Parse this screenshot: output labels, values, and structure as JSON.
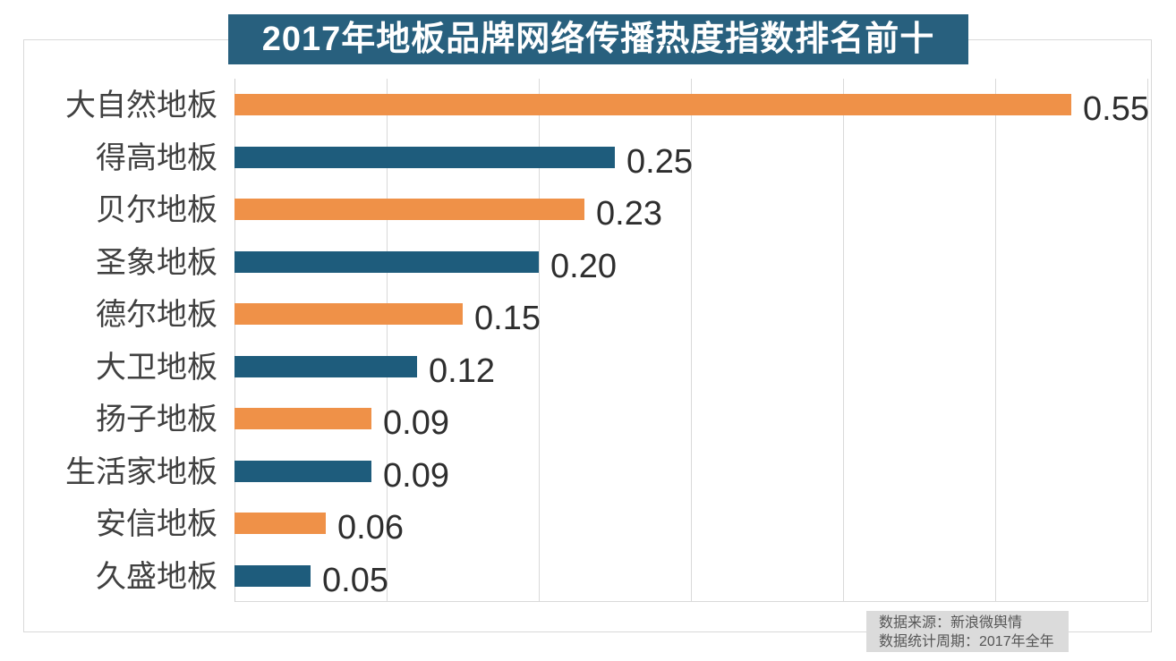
{
  "chart_data": {
    "type": "bar",
    "orientation": "horizontal",
    "title": "2017年地板品牌网络传播热度指数排名前十",
    "categories": [
      "大自然地板",
      "得高地板",
      "贝尔地板",
      "圣象地板",
      "德尔地板",
      "大卫地板",
      "扬子地板",
      "生活家地板",
      "安信地板",
      "久盛地板"
    ],
    "values": [
      0.55,
      0.25,
      0.23,
      0.2,
      0.15,
      0.12,
      0.09,
      0.09,
      0.06,
      0.05
    ],
    "value_labels": [
      "0.55",
      "0.25",
      "0.23",
      "0.20",
      "0.15",
      "0.12",
      "0.09",
      "0.09",
      "0.06",
      "0.05"
    ],
    "xlabel": "",
    "ylabel": "",
    "xlim": [
      0,
      0.6
    ],
    "gridline_interval": 0.1,
    "grid": true,
    "legend": "none",
    "bar_colors_alternating": [
      "#EF9148",
      "#1E5C7C"
    ],
    "title_banner_color": "#28607E",
    "label_color": "#404040",
    "value_color": "#2E2E2E"
  },
  "footer": {
    "source_line": "数据来源：新浪微舆情",
    "period_line": "数据统计周期：2017年全年"
  }
}
